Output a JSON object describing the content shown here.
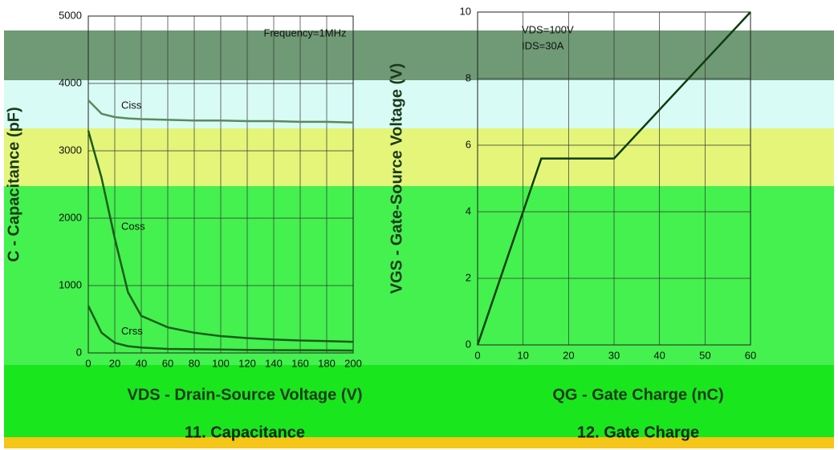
{
  "chart_data": [
    {
      "type": "line",
      "title": "11. Capacitance",
      "x_label": "VDS - Drain-Source Voltage (V)",
      "y_label": "C - Capacitance (pF)",
      "annotations": [
        "Frequency=1MHz"
      ],
      "x": [
        0,
        10,
        20,
        30,
        40,
        60,
        80,
        100,
        120,
        140,
        160,
        180,
        200
      ],
      "series": [
        {
          "name": "Ciss",
          "color": "#5a8a5a",
          "values": [
            3750,
            3550,
            3500,
            3480,
            3470,
            3460,
            3450,
            3450,
            3440,
            3440,
            3430,
            3430,
            3420
          ]
        },
        {
          "name": "Coss",
          "color": "#1a5c1a",
          "values": [
            3300,
            2600,
            1700,
            900,
            550,
            380,
            300,
            250,
            220,
            200,
            185,
            175,
            165
          ]
        },
        {
          "name": "Crss",
          "color": "#1a5c1a",
          "values": [
            700,
            300,
            150,
            100,
            80,
            60,
            55,
            50,
            45,
            42,
            40,
            38,
            36
          ]
        }
      ],
      "xlim": [
        0,
        200
      ],
      "xticks": [
        0,
        20,
        40,
        60,
        80,
        100,
        120,
        140,
        160,
        180,
        200
      ],
      "ylim": [
        0,
        5000
      ],
      "yticks": [
        0,
        1000,
        2000,
        3000,
        4000,
        5000
      ],
      "grid": true
    },
    {
      "type": "line",
      "title": "12. Gate Charge",
      "x_label": "QG - Gate Charge (nC)",
      "y_label": "VGS - Gate-Source Voltage (V)",
      "annotations": [
        "VDS=100V",
        "IDS=30A"
      ],
      "x": [
        0,
        14,
        30,
        60
      ],
      "series": [
        {
          "color": "#0d3d0d",
          "values": [
            0,
            5.6,
            5.6,
            10
          ]
        }
      ],
      "xlim": [
        0,
        60
      ],
      "xticks": [
        0,
        10,
        20,
        30,
        40,
        50,
        60
      ],
      "ylim": [
        0,
        10
      ],
      "yticks": [
        0,
        2,
        4,
        6,
        8,
        10
      ],
      "grid": true
    }
  ]
}
